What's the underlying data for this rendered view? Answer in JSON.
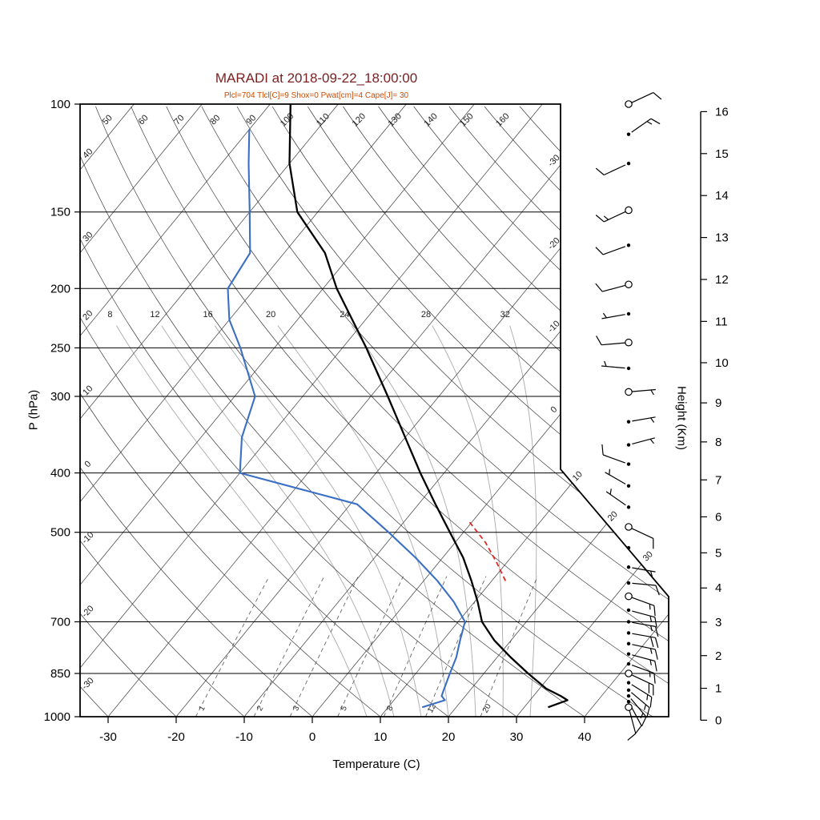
{
  "chart_data": {
    "type": "line",
    "variant": "skew-t-log-p-sounding",
    "title": "MARADI at 2018-09-22_18:00:00",
    "subtitle": "Plcl=704 Tlcl[C]=9 Shox=0 Pwat[cm]=4 Cape[J]= 30",
    "xlabel": "Temperature (C)",
    "ylabel_left": "P (hPa)",
    "ylabel_right": "Height (Km)",
    "pressure_ticks": [
      100,
      150,
      200,
      250,
      300,
      400,
      500,
      700,
      850,
      1000
    ],
    "temperature_ticks": [
      -30,
      -20,
      -10,
      0,
      10,
      20,
      30,
      40
    ],
    "height_ticks_km": [
      0,
      1,
      2,
      3,
      4,
      5,
      6,
      7,
      8,
      9,
      10,
      11,
      12,
      13,
      14,
      15,
      16
    ],
    "isotherms_c": [
      -110,
      -100,
      -90,
      -80,
      -70,
      -60,
      -50,
      -40,
      -30,
      -20,
      -10,
      0,
      10,
      20,
      30,
      40
    ],
    "isotherm_right_edge_labels": [
      0,
      -10,
      -20,
      -30
    ],
    "isotherm_diagonal_labels": [
      10,
      20,
      30
    ],
    "dry_adiabats_c": [
      -30,
      -20,
      -10,
      0,
      10,
      20,
      30,
      40,
      50,
      60,
      70,
      80,
      90,
      100,
      110,
      120,
      130,
      140,
      150,
      160,
      170
    ],
    "dry_adiabat_top_labels": [
      50,
      60,
      70,
      80,
      90,
      100,
      110,
      120,
      130,
      140,
      150,
      160
    ],
    "dry_adiabat_left_labels": [
      40,
      30,
      20,
      10,
      0,
      -10,
      -20,
      -30
    ],
    "moist_adiabats_c": [
      8,
      12,
      16,
      20,
      24,
      28,
      32
    ],
    "mixing_ratio_g_kg": [
      1,
      2,
      3,
      5,
      8,
      12,
      20
    ],
    "temperature_profile": [
      {
        "p": 965,
        "t": 33.5
      },
      {
        "p": 940,
        "t": 35.5
      },
      {
        "p": 925,
        "t": 34
      },
      {
        "p": 900,
        "t": 31
      },
      {
        "p": 850,
        "t": 26.5
      },
      {
        "p": 800,
        "t": 22
      },
      {
        "p": 750,
        "t": 17.5
      },
      {
        "p": 700,
        "t": 13.5
      },
      {
        "p": 650,
        "t": 10.5
      },
      {
        "p": 600,
        "t": 7
      },
      {
        "p": 550,
        "t": 3
      },
      {
        "p": 500,
        "t": -2
      },
      {
        "p": 450,
        "t": -7.5
      },
      {
        "p": 400,
        "t": -13.5
      },
      {
        "p": 350,
        "t": -20
      },
      {
        "p": 300,
        "t": -27.5
      },
      {
        "p": 250,
        "t": -36.5
      },
      {
        "p": 200,
        "t": -48
      },
      {
        "p": 175,
        "t": -54
      },
      {
        "p": 150,
        "t": -63
      },
      {
        "p": 125,
        "t": -70
      },
      {
        "p": 100,
        "t": -77
      }
    ],
    "dewpoint_profile": [
      {
        "p": 965,
        "t": 15
      },
      {
        "p": 940,
        "t": 17.5
      },
      {
        "p": 925,
        "t": 16.5
      },
      {
        "p": 900,
        "t": 16
      },
      {
        "p": 850,
        "t": 15
      },
      {
        "p": 800,
        "t": 14
      },
      {
        "p": 750,
        "t": 12.5
      },
      {
        "p": 700,
        "t": 11
      },
      {
        "p": 650,
        "t": 7
      },
      {
        "p": 600,
        "t": 2
      },
      {
        "p": 550,
        "t": -4
      },
      {
        "p": 500,
        "t": -11
      },
      {
        "p": 450,
        "t": -19
      },
      {
        "p": 400,
        "t": -40
      },
      {
        "p": 350,
        "t": -44
      },
      {
        "p": 300,
        "t": -47
      },
      {
        "p": 250,
        "t": -55
      },
      {
        "p": 225,
        "t": -60
      },
      {
        "p": 200,
        "t": -64
      },
      {
        "p": 175,
        "t": -65
      },
      {
        "p": 150,
        "t": -70
      },
      {
        "p": 125,
        "t": -76
      },
      {
        "p": 110,
        "t": -80
      }
    ],
    "parcel_path": [
      {
        "p": 600,
        "t": 12
      },
      {
        "p": 560,
        "t": 8.5
      },
      {
        "p": 520,
        "t": 4.5
      },
      {
        "p": 480,
        "t": -0.5
      }
    ],
    "winds": [
      {
        "p": 100,
        "dir": 65,
        "spd": 10,
        "m": "circle"
      },
      {
        "p": 112,
        "dir": 55,
        "spd": 15,
        "m": "dot"
      },
      {
        "p": 125,
        "dir": 245,
        "spd": 10,
        "m": "dot"
      },
      {
        "p": 149,
        "dir": 245,
        "spd": 15,
        "m": "circle"
      },
      {
        "p": 170,
        "dir": 250,
        "spd": 10,
        "m": "dot"
      },
      {
        "p": 197,
        "dir": 255,
        "spd": 10,
        "m": "circle"
      },
      {
        "p": 220,
        "dir": 260,
        "spd": 5,
        "m": "dot"
      },
      {
        "p": 245,
        "dir": 265,
        "spd": 10,
        "m": "circle"
      },
      {
        "p": 270,
        "dir": 275,
        "spd": 5,
        "m": "dot"
      },
      {
        "p": 295,
        "dir": 85,
        "spd": 5,
        "m": "circle"
      },
      {
        "p": 330,
        "dir": 80,
        "spd": 5,
        "m": "dot"
      },
      {
        "p": 360,
        "dir": 75,
        "spd": 5,
        "m": "dot"
      },
      {
        "p": 387,
        "dir": 290,
        "spd": 10,
        "m": "dot"
      },
      {
        "p": 420,
        "dir": 300,
        "spd": 5,
        "m": "dot"
      },
      {
        "p": 455,
        "dir": 305,
        "spd": 5,
        "m": "dot"
      },
      {
        "p": 490,
        "dir": 115,
        "spd": 10,
        "m": "circle"
      },
      {
        "p": 530,
        "dir": 0,
        "spd": 0,
        "m": "dot"
      },
      {
        "p": 570,
        "dir": 100,
        "spd": 5,
        "m": "dot"
      },
      {
        "p": 605,
        "dir": 95,
        "spd": 10,
        "m": "dot"
      },
      {
        "p": 636,
        "dir": 110,
        "spd": 15,
        "m": "circle"
      },
      {
        "p": 670,
        "dir": 105,
        "spd": 15,
        "m": "dot"
      },
      {
        "p": 700,
        "dir": 100,
        "spd": 15,
        "m": "dot"
      },
      {
        "p": 730,
        "dir": 100,
        "spd": 20,
        "m": "dot"
      },
      {
        "p": 760,
        "dir": 102,
        "spd": 15,
        "m": "dot"
      },
      {
        "p": 790,
        "dir": 105,
        "spd": 15,
        "m": "dot"
      },
      {
        "p": 820,
        "dir": 110,
        "spd": 15,
        "m": "dot"
      },
      {
        "p": 850,
        "dir": 115,
        "spd": 20,
        "m": "circle"
      },
      {
        "p": 880,
        "dir": 122,
        "spd": 15,
        "m": "dot"
      },
      {
        "p": 905,
        "dir": 130,
        "spd": 15,
        "m": "dot"
      },
      {
        "p": 925,
        "dir": 140,
        "spd": 15,
        "m": "dot"
      },
      {
        "p": 945,
        "dir": 152,
        "spd": 10,
        "m": "dot"
      },
      {
        "p": 965,
        "dir": 165,
        "spd": 10,
        "m": "circle"
      }
    ],
    "colors": {
      "temperature": "#000000",
      "dewpoint": "#3a6fc4",
      "parcel": "#e02820",
      "title": "#7a1f1f",
      "subtitle": "#cc4a00",
      "grid": "#3a3a3a",
      "moist_adiabat": "#aaaaaa",
      "mixing_ratio": "#555555",
      "frame": "#000000"
    }
  }
}
